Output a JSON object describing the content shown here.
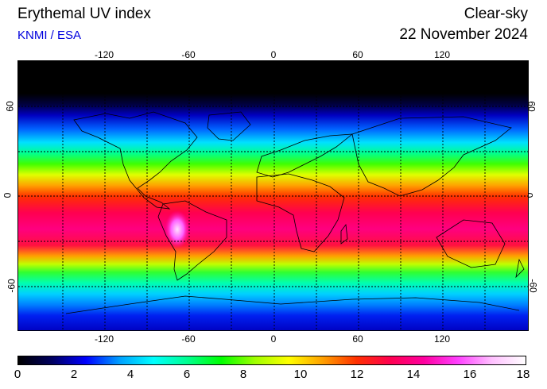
{
  "header": {
    "title": "Erythemal UV index",
    "credit": "KNMI / ESA",
    "mode": "Clear-sky",
    "date": "22 November 2024"
  },
  "map": {
    "lon_ticks": [
      "-120",
      "-60",
      "0",
      "60",
      "120"
    ],
    "lat_ticks": [
      "60",
      "0",
      "-60"
    ]
  },
  "colorbar": {
    "ticks": [
      "0",
      "2",
      "4",
      "6",
      "8",
      "10",
      "12",
      "14",
      "16",
      "18"
    ],
    "min": 0,
    "max": 18
  },
  "colors": {
    "credit": "#0000dd",
    "scale": [
      "#000000",
      "#000060",
      "#0000ff",
      "#00a0ff",
      "#00ffff",
      "#00ff90",
      "#00ff00",
      "#a0ff00",
      "#ffff00",
      "#ffa000",
      "#ff3000",
      "#ff0050",
      "#ff00a0",
      "#ff40ff",
      "#ffc0ff",
      "#ffffff"
    ]
  }
}
